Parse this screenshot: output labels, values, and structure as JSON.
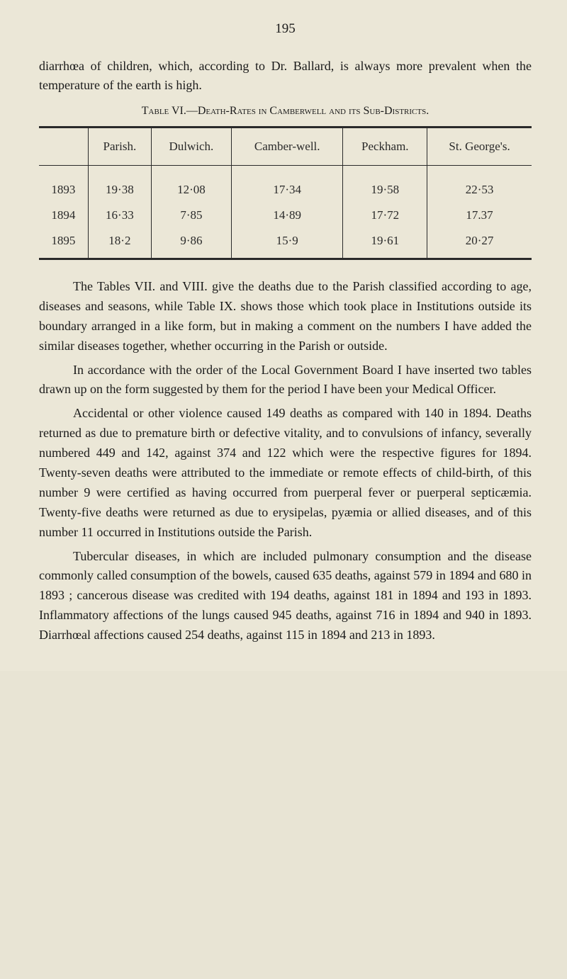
{
  "page_number": "195",
  "intro": "diarrhœa of children, which, according to Dr. Ballard, is always more prevalent when the temperature of the earth is high.",
  "table": {
    "title": "Table VI.—Death-Rates in Camberwell and its Sub-Districts.",
    "columns": [
      "",
      "Parish.",
      "Dulwich.",
      "Camber-well.",
      "Peckham.",
      "St. George's."
    ],
    "rows": [
      [
        "1893",
        "19·38",
        "12·08",
        "17·34",
        "19·58",
        "22·53"
      ],
      [
        "1894",
        "16·33",
        "7·85",
        "14·89",
        "17·72",
        "17.37"
      ],
      [
        "1895",
        "18·2",
        "9·86",
        "15·9",
        "19·61",
        "20·27"
      ]
    ]
  },
  "paragraphs": [
    "The Tables VII. and VIII. give the deaths due to the Parish classified according to age, diseases and seasons, while Table IX. shows those which took place in Institutions outside its boundary arranged in a like form, but in making a comment on the numbers I have added the similar diseases together, whether occurring in the Parish or outside.",
    "In accordance with the order of the Local Government Board I have inserted two tables drawn up on the form suggested by them for the period I have been your Medical Officer.",
    "Accidental or other violence caused 149 deaths as compared with 140 in 1894. Deaths returned as due to premature birth or defective vitality, and to convulsions of infancy, severally numbered 449 and 142, against 374 and 122 which were the respective figures for 1894. Twenty-seven deaths were attributed to the immediate or remote effects of child-birth, of this number 9 were certified as having occurred from puerperal fever or puerperal septicæmia. Twenty-five deaths were returned as due to erysipelas, pyæmia or allied diseases, and of this number 11 occurred in Institutions outside the Parish.",
    "Tubercular diseases, in which are included pulmonary consumption and the disease commonly called consumption of the bowels, caused 635 deaths, against 579 in 1894 and 680 in 1893 ; cancerous disease was credited with 194 deaths, against 181 in 1894 and 193 in 1893. Inflammatory affections of the lungs caused 945 deaths, against 716 in 1894 and 940 in 1893. Diarrhœal affections caused 254 deaths, against 115 in 1894 and 213 in 1893."
  ]
}
